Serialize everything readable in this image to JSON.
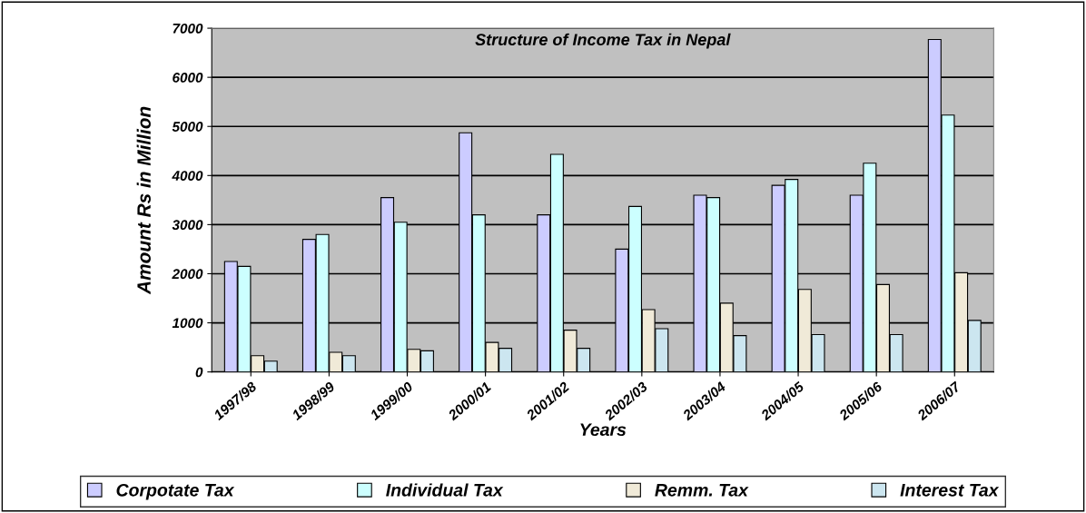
{
  "chart_data": {
    "type": "bar",
    "title": "Structure of Income Tax in Nepal",
    "xlabel": "Years",
    "ylabel": "Amount Rs in Million",
    "categories": [
      "1997/98",
      "1998/99",
      "1999/00",
      "2000/01",
      "2001/02",
      "2002/03",
      "2003/04",
      "2004/05",
      "2005/06",
      "2006/07"
    ],
    "series": [
      {
        "name": "Corpotate Tax",
        "color": "#ccccff",
        "values": [
          2250,
          2700,
          3550,
          4870,
          3200,
          2500,
          3600,
          3800,
          3600,
          6770
        ]
      },
      {
        "name": "Individual Tax",
        "color": "#ccffff",
        "values": [
          2150,
          2800,
          3050,
          3200,
          4430,
          3370,
          3550,
          3920,
          4250,
          5230
        ]
      },
      {
        "name": "Remm. Tax",
        "color": "#f0ead8",
        "values": [
          330,
          400,
          460,
          600,
          850,
          1270,
          1400,
          1680,
          1780,
          2020
        ]
      },
      {
        "name": "Interest Tax",
        "color": "#cce6f0",
        "values": [
          220,
          330,
          430,
          480,
          480,
          880,
          740,
          760,
          760,
          1050
        ]
      }
    ],
    "ylim": [
      0,
      7000
    ],
    "yticks": [
      0,
      1000,
      2000,
      3000,
      4000,
      5000,
      6000,
      7000
    ],
    "grid": "y",
    "legend": "bottom"
  }
}
